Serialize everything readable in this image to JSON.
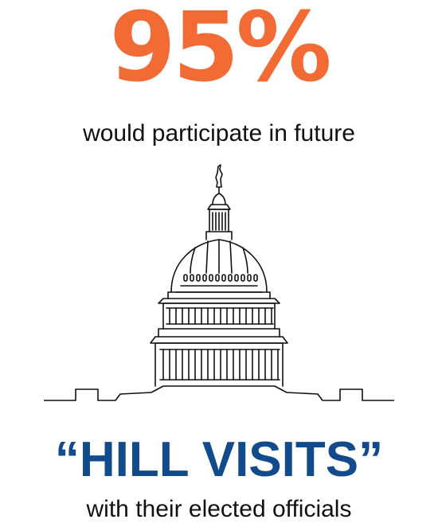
{
  "stat": {
    "value": "95%",
    "color": "#f26b34"
  },
  "caption_top": "would participate in future",
  "illustration": {
    "icon": "capitol-building-icon"
  },
  "headline": {
    "text": "“HILL VISITS”",
    "color": "#124b8c"
  },
  "caption_bottom": "with their elected officials"
}
